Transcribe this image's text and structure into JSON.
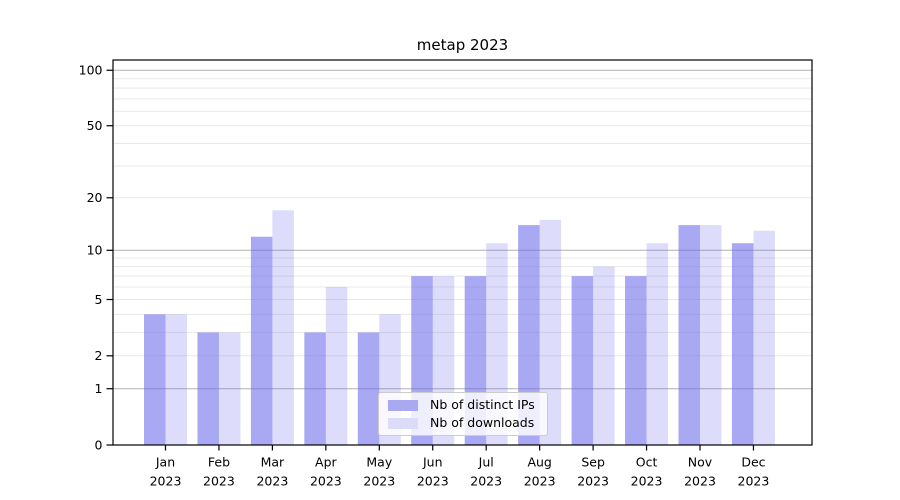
{
  "chart_data": {
    "type": "bar",
    "title": "metap 2023",
    "months": [
      "Jan",
      "Feb",
      "Mar",
      "Apr",
      "May",
      "Jun",
      "Jul",
      "Aug",
      "Sep",
      "Oct",
      "Nov",
      "Dec"
    ],
    "year_label": "2023",
    "series": [
      {
        "name": "Nb of distinct IPs",
        "values": [
          4,
          3,
          12,
          3,
          3,
          7,
          7,
          14,
          7,
          7,
          14,
          11
        ],
        "fill": "rgba(105,105,235,0.58)",
        "swatch": "#a9a9f1"
      },
      {
        "name": "Nb of downloads",
        "values": [
          4,
          3,
          17,
          6,
          4,
          7,
          11,
          15,
          8,
          11,
          14,
          13
        ],
        "fill": "rgba(105,105,235,0.225)",
        "swatch": "#dcdcf9"
      }
    ],
    "y_axis": {
      "scale": "log1p",
      "tick_values": [
        0,
        1,
        2,
        5,
        10,
        20,
        50,
        100
      ],
      "tick_labels": [
        "0",
        "1",
        "2",
        "5",
        "10",
        "20",
        "50",
        "100"
      ],
      "range": [
        0,
        114
      ],
      "dark_gridlines": [
        1,
        10,
        100
      ],
      "light_gridlines": [
        2,
        3,
        4,
        5,
        6,
        7,
        8,
        9,
        20,
        30,
        40,
        50,
        60,
        70,
        80,
        90
      ]
    },
    "legend_position": "lower center",
    "colors": {
      "grid_dark": "#b2b2b2",
      "grid_light": "#e9e9e9",
      "spine": "#000000",
      "text": "#000000"
    }
  }
}
